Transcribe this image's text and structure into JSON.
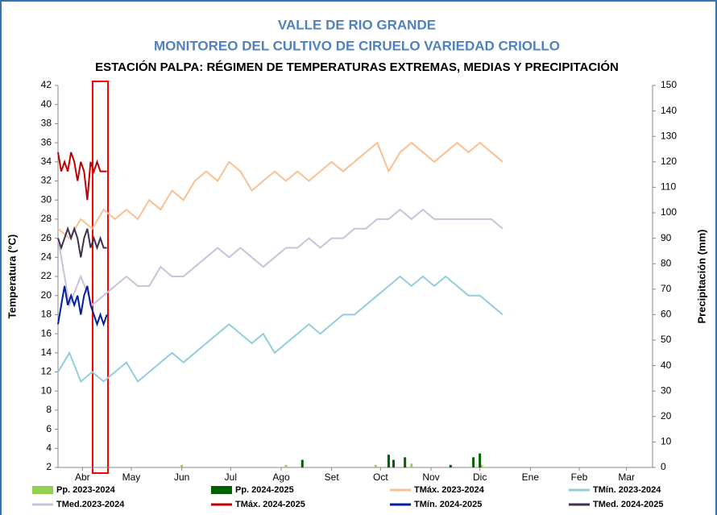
{
  "chart_data": {
    "type": "line",
    "title": "VALLE DE RIO GRANDE",
    "subtitle": "MONITOREO DEL CULTIVO DE CIRUELO VARIEDAD CRIOLLO",
    "caption": "ESTACIÓN PALPA: RÉGIMEN DE TEMPERATURAS EXTREMAS, MEDIAS Y PRECIPITACIÓN",
    "ylabel": "Temperatura (°C)",
    "y2label": "Precipitación (mm)",
    "xlim": [
      0,
      365
    ],
    "xticks": [
      {
        "value": 15,
        "label": "Abr"
      },
      {
        "value": 45,
        "label": "May"
      },
      {
        "value": 76,
        "label": "Jun"
      },
      {
        "value": 106,
        "label": "Jul"
      },
      {
        "value": 137,
        "label": "Ago"
      },
      {
        "value": 168,
        "label": "Set"
      },
      {
        "value": 198,
        "label": "Oct"
      },
      {
        "value": 229,
        "label": "Nov"
      },
      {
        "value": 259,
        "label": "Dic"
      },
      {
        "value": 290,
        "label": "Ene"
      },
      {
        "value": 320,
        "label": "Feb"
      },
      {
        "value": 349,
        "label": "Mar"
      }
    ],
    "ylim": [
      2,
      42
    ],
    "yticks": [
      2,
      4,
      6,
      8,
      10,
      12,
      14,
      16,
      18,
      20,
      22,
      24,
      26,
      28,
      30,
      32,
      34,
      36,
      38,
      40,
      42
    ],
    "y2lim": [
      0,
      150
    ],
    "y2ticks": [
      0,
      10,
      20,
      30,
      40,
      50,
      60,
      70,
      80,
      90,
      100,
      110,
      120,
      130,
      140,
      150
    ],
    "series": [
      {
        "name": "Pp. 2023-2024",
        "type": "bar",
        "axis": "y2",
        "color": "#92d050",
        "x": [
          76,
          140,
          195,
          217,
          260
        ],
        "values": [
          1,
          1,
          1,
          1.5,
          1
        ]
      },
      {
        "name": "Pp. 2024-2025",
        "type": "bar",
        "axis": "y2",
        "color": "#006100",
        "x": [
          150,
          203,
          206,
          213,
          241,
          255,
          259
        ],
        "values": [
          3,
          5,
          3,
          4,
          1,
          4,
          5.5
        ]
      },
      {
        "name": "TMáx. 2023-2024",
        "type": "line",
        "color": "#fac090",
        "x": [
          0,
          7,
          14,
          21,
          28,
          35,
          42,
          49,
          56,
          63,
          70,
          77,
          84,
          91,
          98,
          105,
          112,
          119,
          126,
          133,
          140,
          147,
          154,
          161,
          168,
          175,
          182,
          189,
          196,
          203,
          210,
          217,
          224,
          231,
          238,
          245,
          252,
          259,
          266,
          273
        ],
        "values": [
          27,
          26,
          28,
          27,
          29,
          28,
          29,
          28,
          30,
          29,
          31,
          30,
          32,
          33,
          32,
          34,
          33,
          31,
          32,
          33,
          32,
          33,
          32,
          33,
          34,
          33,
          34,
          35,
          36,
          33,
          35,
          36,
          35,
          34,
          35,
          36,
          35,
          36,
          35,
          34
        ]
      },
      {
        "name": "TMín. 2023-2024",
        "type": "line",
        "color": "#92cddc",
        "x": [
          0,
          7,
          14,
          21,
          28,
          35,
          42,
          49,
          56,
          63,
          70,
          77,
          84,
          91,
          98,
          105,
          112,
          119,
          126,
          133,
          140,
          147,
          154,
          161,
          168,
          175,
          182,
          189,
          196,
          203,
          210,
          217,
          224,
          231,
          238,
          245,
          252,
          259,
          266,
          273
        ],
        "values": [
          12,
          14,
          11,
          12,
          11,
          12,
          13,
          11,
          12,
          13,
          14,
          13,
          14,
          15,
          16,
          17,
          16,
          15,
          16,
          14,
          15,
          16,
          17,
          16,
          17,
          18,
          18,
          19,
          20,
          21,
          22,
          21,
          22,
          21,
          22,
          21,
          20,
          20,
          19,
          18
        ]
      },
      {
        "name": "TMed.2023-2024",
        "type": "line",
        "color": "#ccc0da",
        "x": [
          0,
          7,
          14,
          21,
          28,
          35,
          42,
          49,
          56,
          63,
          70,
          77,
          84,
          91,
          98,
          105,
          112,
          119,
          126,
          133,
          140,
          147,
          154,
          161,
          168,
          175,
          182,
          189,
          196,
          203,
          210,
          217,
          224,
          231,
          238,
          245,
          252,
          259,
          266,
          273
        ],
        "values": [
          26,
          19,
          22,
          19,
          20,
          21,
          22,
          21,
          21,
          23,
          22,
          22,
          23,
          24,
          25,
          24,
          25,
          24,
          23,
          24,
          25,
          25,
          26,
          25,
          26,
          26,
          27,
          27,
          28,
          28,
          29,
          28,
          29,
          28,
          28,
          28,
          28,
          28,
          28,
          27
        ]
      },
      {
        "name": "TMáx. 2024-2025",
        "type": "line",
        "color": "#c00000",
        "x": [
          0,
          2,
          4,
          6,
          8,
          10,
          12,
          14,
          16,
          18,
          20,
          22,
          24,
          26,
          28,
          30
        ],
        "values": [
          35,
          33,
          34,
          33,
          35,
          34,
          32,
          34,
          33,
          30,
          34,
          33,
          34,
          33,
          33,
          33
        ]
      },
      {
        "name": "TMín. 2024-2025",
        "type": "line",
        "color": "#0020a0",
        "x": [
          0,
          2,
          4,
          6,
          8,
          10,
          12,
          14,
          16,
          18,
          20,
          22,
          24,
          26,
          28,
          30
        ],
        "values": [
          17,
          19,
          21,
          19,
          20,
          19,
          20,
          18,
          20,
          21,
          19,
          18,
          17,
          18,
          17,
          18
        ]
      },
      {
        "name": "TMed. 2024-2025",
        "type": "line",
        "color": "#403152",
        "x": [
          0,
          2,
          4,
          6,
          8,
          10,
          12,
          14,
          16,
          18,
          20,
          22,
          24,
          26,
          28,
          30
        ],
        "values": [
          26,
          25,
          26,
          27,
          26,
          27,
          26,
          24,
          26,
          27,
          25,
          26,
          25,
          26,
          25,
          25
        ]
      }
    ]
  }
}
